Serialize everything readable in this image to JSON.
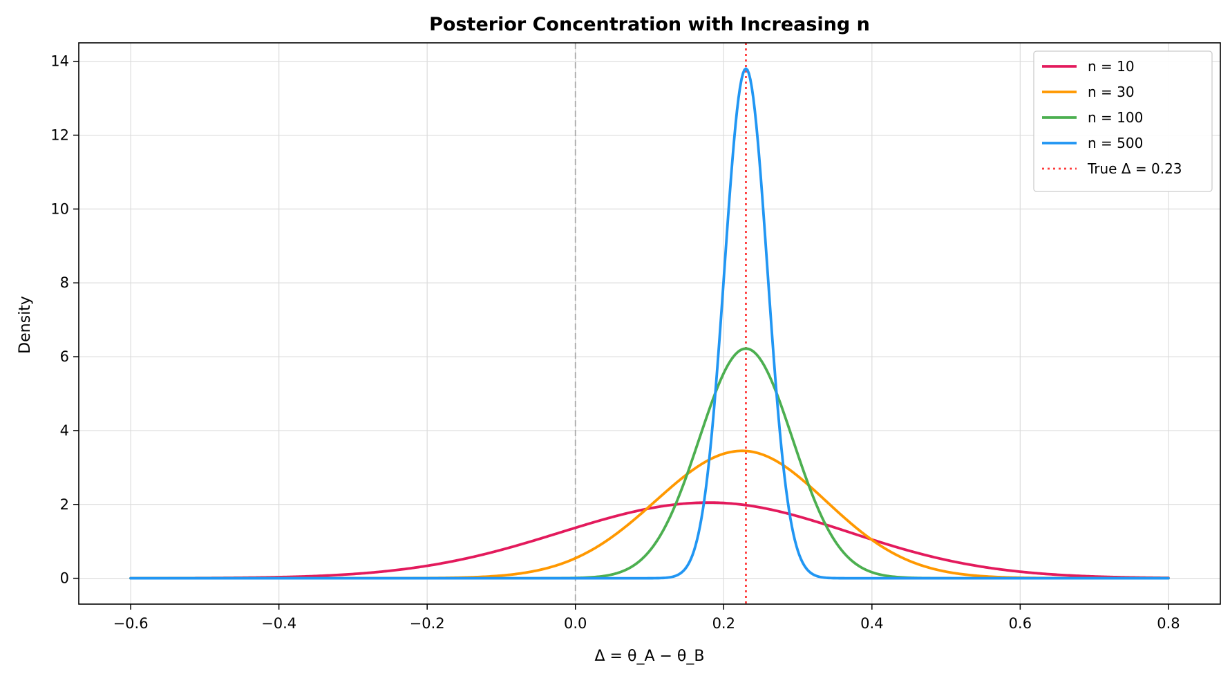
{
  "chart_data": {
    "type": "line",
    "title": "Posterior Concentration with Increasing n",
    "xlabel": "Δ = θ_A − θ_B",
    "ylabel": "Density",
    "xlim": [
      -0.67,
      0.87
    ],
    "ylim": [
      -0.7,
      14.5
    ],
    "xticks": [
      -0.6,
      -0.4,
      -0.2,
      0.0,
      0.2,
      0.4,
      0.6,
      0.8
    ],
    "xtick_labels": [
      "−0.6",
      "−0.4",
      "−0.2",
      "0.0",
      "0.2",
      "0.4",
      "0.6",
      "0.8"
    ],
    "yticks": [
      0,
      2,
      4,
      6,
      8,
      10,
      12,
      14
    ],
    "ytick_labels": [
      "0",
      "2",
      "4",
      "6",
      "8",
      "10",
      "12",
      "14"
    ],
    "grid": true,
    "legend_position": "top-right",
    "x_range": [
      -0.6,
      0.8
    ],
    "series": [
      {
        "name": "n = 10",
        "color": "#e31a5c",
        "peak_x": 0.18,
        "peak_y": 2.05,
        "sd_left": 0.2,
        "sd_right": 0.19
      },
      {
        "name": "n = 30",
        "color": "#ff9800",
        "peak_x": 0.225,
        "peak_y": 3.45,
        "sd_left": 0.117,
        "sd_right": 0.113
      },
      {
        "name": "n = 100",
        "color": "#4caf50",
        "peak_x": 0.23,
        "peak_y": 6.22,
        "sd_left": 0.063,
        "sd_right": 0.063
      },
      {
        "name": "n = 500",
        "color": "#2196f3",
        "peak_x": 0.23,
        "peak_y": 13.8,
        "sd_left": 0.029,
        "sd_right": 0.029
      }
    ],
    "reference_lines": [
      {
        "name": "True Δ = 0.23",
        "x": 0.23,
        "color": "#ff3b3b",
        "style": "dotted",
        "in_legend": true
      },
      {
        "name": "",
        "x": 0.0,
        "color": "#aaaaaa",
        "style": "dashed",
        "in_legend": false
      }
    ]
  }
}
